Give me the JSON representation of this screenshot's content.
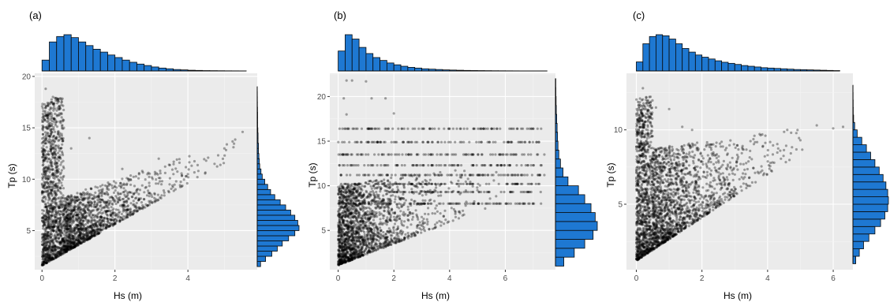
{
  "colors": {
    "panel_bg": "#ebebeb",
    "grid_major": "#ffffff",
    "grid_minor": "#f4f4f4",
    "point": "#000000",
    "hist_fill": "#1e78d2",
    "hist_stroke": "#0a0a0a",
    "tick_label": "#4d4d4d"
  },
  "chart_data": [
    {
      "panel_label": "(a)",
      "type": "scatter",
      "title": "",
      "xlabel": "Hs (m)",
      "ylabel": "Tp (s)",
      "xlim": [
        -0.2,
        5.9
      ],
      "ylim": [
        1.2,
        20.3
      ],
      "xticks": [
        0,
        2,
        4
      ],
      "yticks": [
        5,
        10,
        15,
        20
      ],
      "grid": true,
      "scatter_points": [
        [
          0.1,
          2.0
        ],
        [
          0.2,
          3.5
        ],
        [
          0.3,
          6.0
        ],
        [
          0.4,
          8.5
        ],
        [
          0.2,
          12.0
        ],
        [
          0.15,
          16.0
        ],
        [
          0.3,
          18.0
        ],
        [
          0.1,
          18.8
        ],
        [
          0.5,
          10.5
        ],
        [
          0.8,
          13.0
        ],
        [
          1.0,
          4.0
        ],
        [
          1.5,
          5.5
        ],
        [
          2.0,
          6.5
        ],
        [
          2.5,
          7.5
        ],
        [
          3.0,
          8.5
        ],
        [
          3.5,
          9.5
        ],
        [
          4.0,
          10.5
        ],
        [
          4.5,
          11.8
        ],
        [
          5.0,
          13.0
        ],
        [
          5.5,
          14.6
        ],
        [
          1.2,
          9.0
        ],
        [
          2.2,
          11.0
        ],
        [
          3.2,
          12.0
        ],
        [
          0.6,
          15.0
        ],
        [
          1.3,
          14.0
        ]
      ],
      "top_histogram": {
        "variable": "Hs (m)",
        "bin_edges": [
          0.0,
          0.2,
          0.4,
          0.6,
          0.8,
          1.0,
          1.2,
          1.4,
          1.6,
          1.8,
          2.0,
          2.2,
          2.4,
          2.6,
          2.8,
          3.0,
          3.2,
          3.4,
          3.6,
          3.8,
          4.0,
          4.2,
          4.4,
          4.6,
          4.8,
          5.0,
          5.2,
          5.4,
          5.6
        ],
        "relative_heights": [
          0.3,
          0.8,
          0.95,
          1.0,
          0.92,
          0.8,
          0.7,
          0.6,
          0.52,
          0.44,
          0.37,
          0.3,
          0.24,
          0.19,
          0.15,
          0.11,
          0.08,
          0.06,
          0.04,
          0.03,
          0.02,
          0.015,
          0.01,
          0.008,
          0.006,
          0.004,
          0.003,
          0.002
        ]
      },
      "right_histogram": {
        "variable": "Tp (s)",
        "bin_edges": [
          1.5,
          2.0,
          2.5,
          3.0,
          3.5,
          4.0,
          4.5,
          5.0,
          5.5,
          6.0,
          6.5,
          7.0,
          7.5,
          8.0,
          8.5,
          9.0,
          9.5,
          10.0,
          10.5,
          11.0,
          11.5,
          12.0,
          12.5,
          13.0,
          13.5,
          14.0,
          14.5,
          15.0,
          15.5,
          16.0,
          16.5,
          17.0,
          17.5,
          18.0,
          18.5,
          19.0
        ],
        "relative_heights": [
          0.08,
          0.2,
          0.35,
          0.48,
          0.6,
          0.75,
          0.9,
          1.0,
          0.97,
          0.9,
          0.8,
          0.68,
          0.55,
          0.42,
          0.32,
          0.25,
          0.18,
          0.12,
          0.09,
          0.06,
          0.05,
          0.04,
          0.03,
          0.03,
          0.02,
          0.02,
          0.015,
          0.01,
          0.01,
          0.01,
          0.008,
          0.005,
          0.004,
          0.003,
          0.002
        ]
      }
    },
    {
      "panel_label": "(b)",
      "type": "scatter",
      "title": "",
      "xlabel": "Hs (m)",
      "ylabel": "Tp (s)",
      "xlim": [
        -0.3,
        7.8
      ],
      "ylim": [
        0.6,
        22.6
      ],
      "xticks": [
        0,
        2,
        4,
        6
      ],
      "yticks": [
        5,
        10,
        15,
        20
      ],
      "grid": true,
      "scatter_points": [
        [
          0.0,
          1.2
        ],
        [
          0.1,
          2.0
        ],
        [
          0.5,
          3.0
        ],
        [
          1.0,
          3.5
        ],
        [
          2.0,
          5.0
        ],
        [
          3.0,
          6.5
        ],
        [
          4.0,
          8.0
        ],
        [
          5.0,
          9.5
        ],
        [
          0.3,
          21.8
        ],
        [
          0.5,
          21.8
        ],
        [
          1.0,
          21.7
        ],
        [
          0.2,
          19.8
        ],
        [
          1.2,
          19.8
        ],
        [
          1.7,
          19.8
        ],
        [
          0.3,
          18.0
        ],
        [
          2.0,
          18.1
        ],
        [
          2.5,
          16.4
        ],
        [
          7.0,
          16.4
        ],
        [
          5.5,
          16.4
        ],
        [
          0.4,
          14.9
        ],
        [
          7.2,
          14.9
        ],
        [
          0.5,
          13.5
        ],
        [
          7.4,
          13.5
        ],
        [
          7.3,
          12.3
        ],
        [
          7.4,
          11.2
        ],
        [
          7.1,
          10.2
        ],
        [
          6.2,
          9.3
        ],
        [
          0.6,
          8.0
        ],
        [
          0.8,
          6.0
        ],
        [
          1.4,
          4.5
        ]
      ],
      "top_histogram": {
        "variable": "Hs (m)",
        "bin_edges": [
          0.0,
          0.25,
          0.5,
          0.75,
          1.0,
          1.25,
          1.5,
          1.75,
          2.0,
          2.25,
          2.5,
          2.75,
          3.0,
          3.25,
          3.5,
          3.75,
          4.0,
          4.25,
          4.5,
          4.75,
          5.0,
          5.25,
          5.5,
          5.75,
          6.0,
          6.25,
          6.5,
          6.75,
          7.0,
          7.25,
          7.5
        ],
        "relative_heights": [
          0.55,
          1.0,
          0.88,
          0.65,
          0.48,
          0.37,
          0.29,
          0.22,
          0.17,
          0.13,
          0.1,
          0.08,
          0.06,
          0.05,
          0.04,
          0.03,
          0.025,
          0.02,
          0.015,
          0.012,
          0.01,
          0.008,
          0.006,
          0.005,
          0.004,
          0.003,
          0.002,
          0.002,
          0.001,
          0.001
        ]
      },
      "right_histogram": {
        "variable": "Tp (s)",
        "bin_edges": [
          1.0,
          2.0,
          3.0,
          4.0,
          5.0,
          6.0,
          7.0,
          8.0,
          9.0,
          10.0,
          11.0,
          12.0,
          13.0,
          14.0,
          15.0,
          16.0,
          17.0,
          18.0,
          19.0,
          20.0,
          21.0,
          22.0
        ],
        "relative_heights": [
          0.2,
          0.45,
          0.7,
          0.9,
          1.0,
          0.95,
          0.85,
          0.7,
          0.55,
          0.3,
          0.18,
          0.12,
          0.08,
          0.06,
          0.05,
          0.04,
          0.03,
          0.02,
          0.015,
          0.01,
          0.008
        ]
      }
    },
    {
      "panel_label": "(c)",
      "type": "scatter",
      "title": "",
      "xlabel": "Hs (m)",
      "ylabel": "Tp (s)",
      "xlim": [
        -0.3,
        6.6
      ],
      "ylim": [
        0.6,
        13.8
      ],
      "xticks": [
        0,
        2,
        4,
        6
      ],
      "yticks": [
        5,
        10
      ],
      "grid": true,
      "scatter_points": [
        [
          0.1,
          1.5
        ],
        [
          0.5,
          3.0
        ],
        [
          1.0,
          4.0
        ],
        [
          2.0,
          5.5
        ],
        [
          3.0,
          7.0
        ],
        [
          4.0,
          8.3
        ],
        [
          5.0,
          9.3
        ],
        [
          6.0,
          10.1
        ],
        [
          6.3,
          10.2
        ],
        [
          0.2,
          12.8
        ],
        [
          0.3,
          12.2
        ],
        [
          0.6,
          11.5
        ],
        [
          1.0,
          11.4
        ],
        [
          1.4,
          10.2
        ],
        [
          1.7,
          10.0
        ],
        [
          2.2,
          9.0
        ],
        [
          0.4,
          9.5
        ],
        [
          0.8,
          8.0
        ],
        [
          0.3,
          6.0
        ],
        [
          1.5,
          7.0
        ],
        [
          2.6,
          9.2
        ],
        [
          3.6,
          9.6
        ],
        [
          4.6,
          10.0
        ],
        [
          5.5,
          10.3
        ]
      ],
      "top_histogram": {
        "variable": "Hs (m)",
        "bin_edges": [
          0.0,
          0.2,
          0.4,
          0.6,
          0.8,
          1.0,
          1.2,
          1.4,
          1.6,
          1.8,
          2.0,
          2.2,
          2.4,
          2.6,
          2.8,
          3.0,
          3.2,
          3.4,
          3.6,
          3.8,
          4.0,
          4.2,
          4.4,
          4.6,
          4.8,
          5.0,
          5.2,
          5.4,
          5.6,
          5.8,
          6.0,
          6.2
        ],
        "relative_heights": [
          0.25,
          0.75,
          0.95,
          1.0,
          0.97,
          0.88,
          0.75,
          0.62,
          0.52,
          0.44,
          0.38,
          0.33,
          0.28,
          0.24,
          0.21,
          0.18,
          0.15,
          0.13,
          0.11,
          0.09,
          0.08,
          0.07,
          0.06,
          0.05,
          0.04,
          0.035,
          0.03,
          0.025,
          0.02,
          0.015,
          0.01
        ]
      },
      "right_histogram": {
        "variable": "Tp (s)",
        "bin_edges": [
          1.0,
          1.5,
          2.0,
          2.5,
          3.0,
          3.5,
          4.0,
          4.5,
          5.0,
          5.5,
          6.0,
          6.5,
          7.0,
          7.5,
          8.0,
          8.5,
          9.0,
          9.5,
          10.0,
          10.5,
          11.0,
          11.5,
          12.0,
          12.5,
          13.0
        ],
        "relative_heights": [
          0.08,
          0.18,
          0.3,
          0.45,
          0.62,
          0.78,
          0.9,
          0.98,
          1.0,
          0.98,
          0.93,
          0.85,
          0.74,
          0.62,
          0.5,
          0.38,
          0.25,
          0.12,
          0.05,
          0.02,
          0.01,
          0.008,
          0.005,
          0.003
        ]
      }
    }
  ]
}
